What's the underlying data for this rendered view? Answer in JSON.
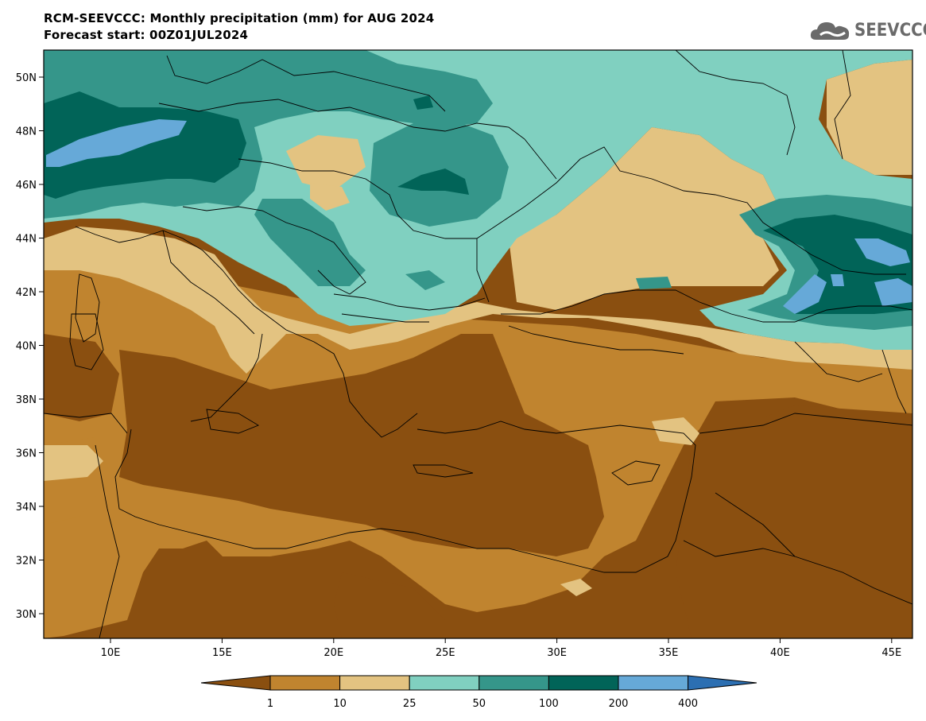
{
  "header": {
    "title_line1": "RCM-SEEVCCC: Monthly precipitation (mm) for AUG 2024",
    "title_line2": "Forecast start: 00Z01JUL2024"
  },
  "logo": {
    "text": "SEEVCCC",
    "icon": "cloud-icon"
  },
  "axes": {
    "lat_labels": [
      "50N",
      "48N",
      "46N",
      "44N",
      "42N",
      "40N",
      "38N",
      "36N",
      "34N",
      "32N",
      "30N"
    ],
    "lon_labels": [
      "10E",
      "15E",
      "20E",
      "25E",
      "30E",
      "35E",
      "40E",
      "45E"
    ]
  },
  "colorbar": {
    "labels": [
      "1",
      "10",
      "25",
      "50",
      "100",
      "200",
      "400"
    ],
    "colors": [
      "#8a4f10",
      "#c0842f",
      "#e3c381",
      "#80d0c0",
      "#35968a",
      "#016458",
      "#66a9d8",
      "#2c6fb2"
    ]
  }
}
